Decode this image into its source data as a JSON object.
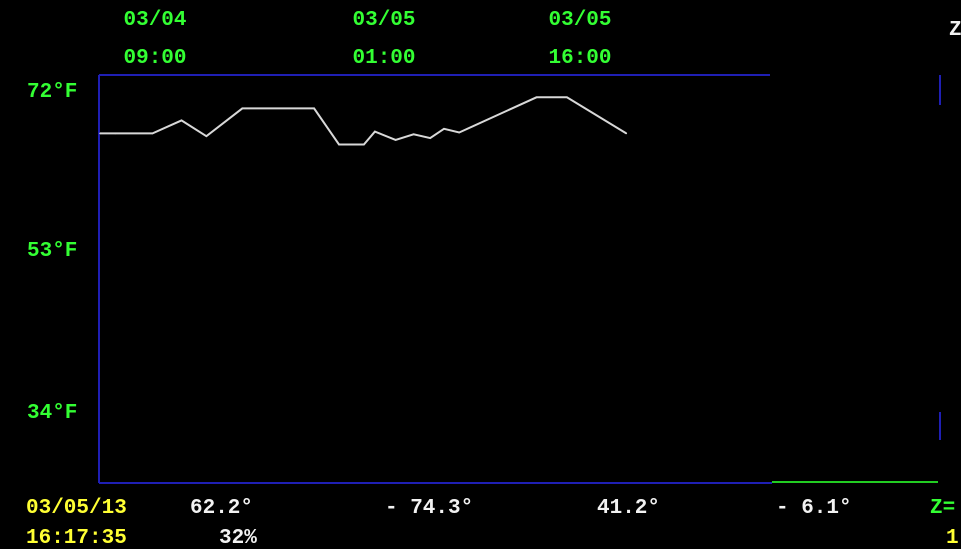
{
  "colors": {
    "background": "#000000",
    "frame": "#1f1fb4",
    "line": "#d8d8d8",
    "time_labels": "#33ff33",
    "axis_labels": "#33ff33",
    "readout_values": "#f2f2f2",
    "datetime": "#ffff33",
    "green_rule": "#22cc22"
  },
  "top_ticks": [
    {
      "date": "03/04",
      "time": "09:00"
    },
    {
      "date": "03/05",
      "time": "01:00"
    },
    {
      "date": "03/05",
      "time": "16:00"
    }
  ],
  "top_right_partial": "Z",
  "footer": {
    "date": "03/05/13",
    "time": "16:17:35",
    "temp": "62.2°",
    "humidity": "32%",
    "v2": "- 74.3°",
    "v3": "41.2°",
    "v4": "- 6.1°",
    "right_partial_top": "Z=",
    "right_partial_bottom": "1"
  },
  "chart_data": {
    "type": "line",
    "title": "",
    "xlabel": "",
    "ylabel": "",
    "x_tick_labels": [
      "03/04 09:00",
      "03/05 01:00",
      "03/05 16:00"
    ],
    "y_tick_labels": [
      "72°F",
      "53°F",
      "34°F"
    ],
    "y_ticks": [
      72,
      53,
      34
    ],
    "ylim": [
      28,
      72
    ],
    "x_unit": "hours since 03/04 09:00",
    "xlim": [
      0,
      48.5
    ],
    "grid": false,
    "series": [
      {
        "values": [
          [
            0,
            65.7
          ],
          [
            1.1,
            65.7
          ],
          [
            3.8,
            65.7
          ],
          [
            5.9,
            67.1
          ],
          [
            7.7,
            65.4
          ],
          [
            10.3,
            68.4
          ],
          [
            15.5,
            68.4
          ],
          [
            17.3,
            64.5
          ],
          [
            19.1,
            64.5
          ],
          [
            19.9,
            65.9
          ],
          [
            21.4,
            65.0
          ],
          [
            22.7,
            65.6
          ],
          [
            23.9,
            65.2
          ],
          [
            24.9,
            66.2
          ],
          [
            26.0,
            65.8
          ],
          [
            31.6,
            69.6
          ],
          [
            33.8,
            69.6
          ],
          [
            38.1,
            65.7
          ]
        ]
      }
    ]
  }
}
